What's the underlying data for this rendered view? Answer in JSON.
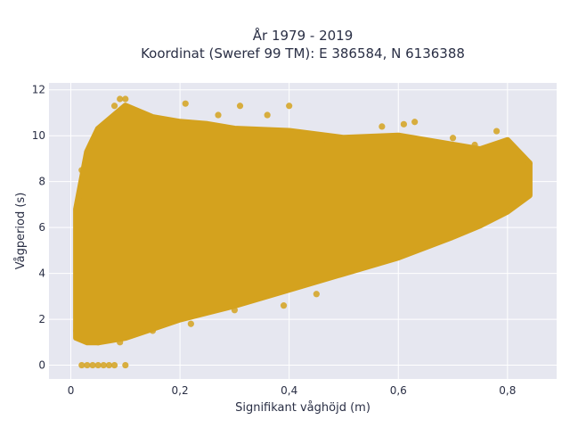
{
  "chart_data": {
    "type": "scatter",
    "title_line1": "År 1979 - 2019",
    "title_line2": "Koordinat (Sweref 99 TM): E 386584, N 6136388",
    "xlabel": "Signifikant våghöjd (m)",
    "ylabel": "Vågperiod (s)",
    "xlim": [
      -0.04,
      0.89
    ],
    "ylim": [
      -0.6,
      12.3
    ],
    "x_ticks": [
      0,
      0.2,
      0.4,
      0.6,
      0.8
    ],
    "x_tick_labels": [
      "0",
      "0,2",
      "0,4",
      "0,6",
      "0,8"
    ],
    "y_ticks": [
      0,
      2,
      4,
      6,
      8,
      10,
      12
    ],
    "y_tick_labels": [
      "0",
      "2",
      "4",
      "6",
      "8",
      "10",
      "12"
    ],
    "grid": true,
    "legend": "none",
    "colors": {
      "marker": "#d4a21e",
      "plot_bg": "#e6e7f0",
      "grid": "#ffffff",
      "text": "#2a2f45"
    },
    "envelope": {
      "x": [
        0.01,
        0.03,
        0.05,
        0.1,
        0.15,
        0.2,
        0.25,
        0.3,
        0.4,
        0.5,
        0.6,
        0.7,
        0.75,
        0.8,
        0.84
      ],
      "y_min": [
        1.2,
        1.0,
        1.0,
        1.2,
        1.6,
        2.0,
        2.3,
        2.6,
        3.3,
        4.0,
        4.7,
        5.6,
        6.1,
        6.7,
        7.4
      ],
      "y_max": [
        6.8,
        9.3,
        10.3,
        11.3,
        10.8,
        10.6,
        10.5,
        10.3,
        10.2,
        9.9,
        10.0,
        9.6,
        9.4,
        9.8,
        8.8
      ]
    },
    "points": [
      {
        "x": 0.09,
        "y": 11.6
      },
      {
        "x": 0.1,
        "y": 11.6
      },
      {
        "x": 0.08,
        "y": 11.3
      },
      {
        "x": 0.21,
        "y": 11.4
      },
      {
        "x": 0.31,
        "y": 11.3
      },
      {
        "x": 0.4,
        "y": 11.3
      },
      {
        "x": 0.27,
        "y": 10.9
      },
      {
        "x": 0.36,
        "y": 10.9
      },
      {
        "x": 0.01,
        "y": 1.5
      },
      {
        "x": 0.02,
        "y": 8.5
      },
      {
        "x": 0.63,
        "y": 10.6
      },
      {
        "x": 0.61,
        "y": 10.5
      },
      {
        "x": 0.57,
        "y": 10.4
      },
      {
        "x": 0.78,
        "y": 10.2
      },
      {
        "x": 0.74,
        "y": 9.6
      },
      {
        "x": 0.84,
        "y": 8.8
      },
      {
        "x": 0.83,
        "y": 8.7
      },
      {
        "x": 0.7,
        "y": 9.9
      },
      {
        "x": 0.56,
        "y": 9.5
      },
      {
        "x": 0.46,
        "y": 9.8
      },
      {
        "x": 0.45,
        "y": 3.1
      },
      {
        "x": 0.39,
        "y": 2.6
      },
      {
        "x": 0.3,
        "y": 2.4
      },
      {
        "x": 0.22,
        "y": 1.8
      },
      {
        "x": 0.15,
        "y": 1.5
      },
      {
        "x": 0.05,
        "y": 1.0
      },
      {
        "x": 0.09,
        "y": 1.0
      },
      {
        "x": 0.02,
        "y": 0.0
      },
      {
        "x": 0.03,
        "y": 0.0
      },
      {
        "x": 0.04,
        "y": 0.0
      },
      {
        "x": 0.05,
        "y": 0.0
      },
      {
        "x": 0.06,
        "y": 0.0
      },
      {
        "x": 0.07,
        "y": 0.0
      },
      {
        "x": 0.08,
        "y": 0.0
      },
      {
        "x": 0.1,
        "y": 0.0
      }
    ]
  }
}
